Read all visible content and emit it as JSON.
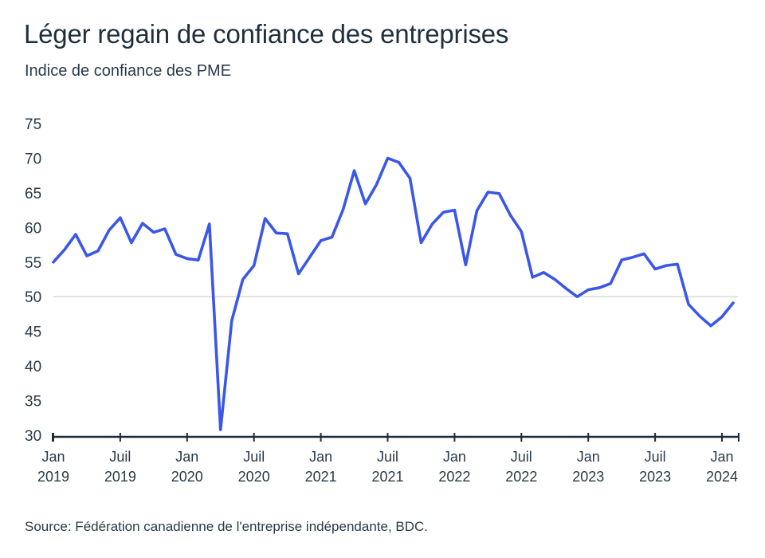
{
  "title": "Léger regain de confiance des entreprises",
  "subtitle": "Indice de confiance des PME",
  "source": "Source: Fédération canadienne de l'entreprise indépendante, BDC.",
  "colors": {
    "line": "#3a57e8",
    "reference": "#d9d9d9",
    "axis": "#1c2b39"
  },
  "chart_data": {
    "type": "line",
    "title": "Léger regain de confiance des entreprises",
    "ylabel": "Indice de confiance des PME",
    "xlabel": "",
    "ylim": [
      30,
      75
    ],
    "yticks": [
      30,
      35,
      40,
      45,
      50,
      55,
      60,
      65,
      70,
      75
    ],
    "reference_line": 50,
    "grid": false,
    "x_start": "2019-01",
    "x_end": "2024-02",
    "xticks": [
      {
        "month": "Jan",
        "year": "2019",
        "date": "2019-01"
      },
      {
        "month": "Juil",
        "year": "2019",
        "date": "2019-07"
      },
      {
        "month": "Jan",
        "year": "2020",
        "date": "2020-01"
      },
      {
        "month": "Juil",
        "year": "2020",
        "date": "2020-07"
      },
      {
        "month": "Jan",
        "year": "2021",
        "date": "2021-01"
      },
      {
        "month": "Juil",
        "year": "2021",
        "date": "2021-07"
      },
      {
        "month": "Jan",
        "year": "2022",
        "date": "2022-01"
      },
      {
        "month": "Juil",
        "year": "2022",
        "date": "2022-07"
      },
      {
        "month": "Jan",
        "year": "2023",
        "date": "2023-01"
      },
      {
        "month": "Juil",
        "year": "2023",
        "date": "2023-07"
      },
      {
        "month": "Jan",
        "year": "2024",
        "date": "2024-01"
      }
    ],
    "series": [
      {
        "points": [
          [
            "2019-01",
            55.0
          ],
          [
            "2019-02",
            56.8
          ],
          [
            "2019-03",
            59.0
          ],
          [
            "2019-04",
            55.9
          ],
          [
            "2019-05",
            56.6
          ],
          [
            "2019-06",
            59.6
          ],
          [
            "2019-07",
            61.4
          ],
          [
            "2019-08",
            57.8
          ],
          [
            "2019-09",
            60.6
          ],
          [
            "2019-10",
            59.3
          ],
          [
            "2019-11",
            59.8
          ],
          [
            "2019-12",
            56.1
          ],
          [
            "2020-01",
            55.5
          ],
          [
            "2020-02",
            55.3
          ],
          [
            "2020-03",
            60.5
          ],
          [
            "2020-04",
            30.8
          ],
          [
            "2020-05",
            46.5
          ],
          [
            "2020-06",
            52.5
          ],
          [
            "2020-07",
            54.5
          ],
          [
            "2020-08",
            61.3
          ],
          [
            "2020-09",
            59.2
          ],
          [
            "2020-10",
            59.1
          ],
          [
            "2020-11",
            53.3
          ],
          [
            "2020-12",
            55.7
          ],
          [
            "2021-01",
            58.1
          ],
          [
            "2021-02",
            58.6
          ],
          [
            "2021-03",
            62.6
          ],
          [
            "2021-04",
            68.2
          ],
          [
            "2021-05",
            63.4
          ],
          [
            "2021-06",
            66.2
          ],
          [
            "2021-07",
            70.0
          ],
          [
            "2021-08",
            69.4
          ],
          [
            "2021-09",
            67.1
          ],
          [
            "2021-10",
            57.8
          ],
          [
            "2021-11",
            60.5
          ],
          [
            "2021-12",
            62.2
          ],
          [
            "2022-01",
            62.5
          ],
          [
            "2022-02",
            54.6
          ],
          [
            "2022-03",
            62.4
          ],
          [
            "2022-04",
            65.1
          ],
          [
            "2022-05",
            64.9
          ],
          [
            "2022-06",
            61.8
          ],
          [
            "2022-07",
            59.4
          ],
          [
            "2022-08",
            52.8
          ],
          [
            "2022-09",
            53.5
          ],
          [
            "2022-10",
            52.5
          ],
          [
            "2022-11",
            51.2
          ],
          [
            "2022-12",
            50.0
          ],
          [
            "2023-01",
            51.0
          ],
          [
            "2023-02",
            51.3
          ],
          [
            "2023-03",
            51.9
          ],
          [
            "2023-04",
            55.3
          ],
          [
            "2023-05",
            55.7
          ],
          [
            "2023-06",
            56.2
          ],
          [
            "2023-07",
            54.0
          ],
          [
            "2023-08",
            54.5
          ],
          [
            "2023-09",
            54.7
          ],
          [
            "2023-10",
            48.9
          ],
          [
            "2023-11",
            47.2
          ],
          [
            "2023-12",
            45.8
          ],
          [
            "2024-01",
            47.1
          ],
          [
            "2024-02",
            49.1
          ]
        ]
      }
    ]
  }
}
